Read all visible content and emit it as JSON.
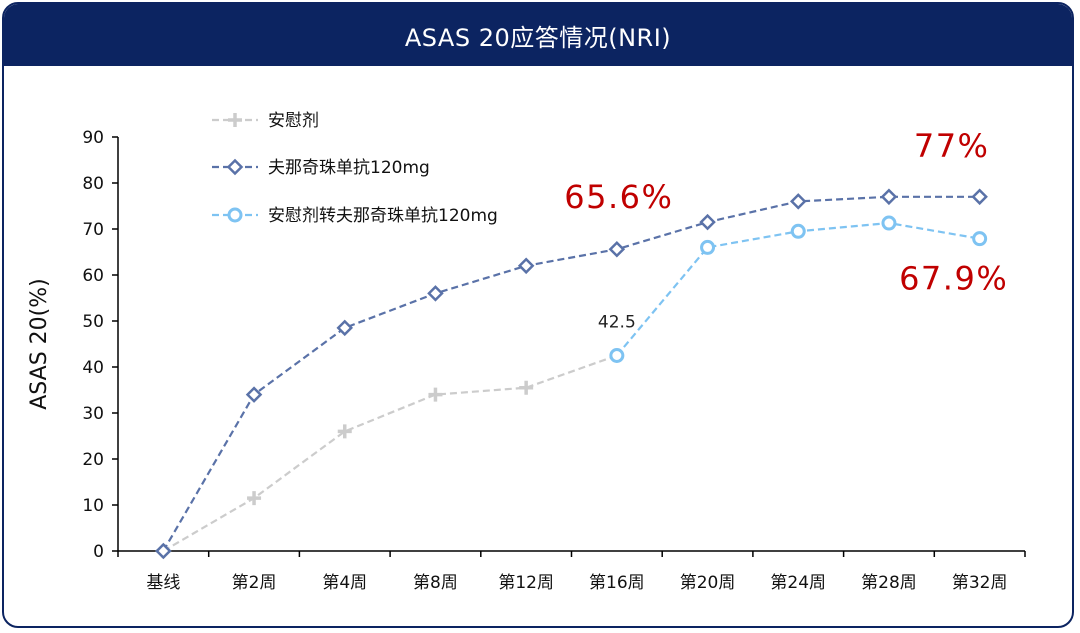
{
  "header": {
    "title": "ASAS 20应答情况(NRI)"
  },
  "colors": {
    "header_bg": "#0c2461",
    "placebo": "#cccccc",
    "drug": "#5a72a8",
    "crossover": "#7ec3f2",
    "highlight": "#c00000"
  },
  "chart_data": {
    "type": "line",
    "title": "ASAS 20应答情况(NRI)",
    "xlabel": "",
    "ylabel": "ASAS 20(%)",
    "ylim": [
      0,
      90
    ],
    "yticks": [
      "0",
      "10",
      "20",
      "30",
      "40",
      "50",
      "60",
      "70",
      "80",
      "90"
    ],
    "categories": [
      "基线",
      "第2周",
      "第4周",
      "第8周",
      "第12周",
      "第16周",
      "第20周",
      "第24周",
      "第28周",
      "第32周"
    ],
    "legend_position": "top-left",
    "series": [
      {
        "name": "安慰剂",
        "marker": "plus",
        "values": [
          0,
          11.5,
          26,
          34,
          35.5,
          42.5,
          null,
          null,
          null,
          null
        ]
      },
      {
        "name": "夫那奇珠单抗120mg",
        "marker": "diamond",
        "values": [
          0,
          34,
          48.5,
          56,
          62,
          65.6,
          71.5,
          76,
          77,
          77
        ]
      },
      {
        "name": "安慰剂转夫那奇珠单抗120mg",
        "marker": "circle",
        "values": [
          null,
          null,
          null,
          null,
          null,
          42.5,
          66,
          69.5,
          71.3,
          67.9
        ]
      }
    ],
    "annotations": [
      {
        "text": "42.5",
        "x": "第16周",
        "y": 42.5,
        "color": "#222222",
        "size": 17
      },
      {
        "text": "65.6%",
        "x": "第16周",
        "y": 65.6,
        "color": "#c00000",
        "size": 32
      },
      {
        "text": "77%",
        "x": "第32周",
        "y": 77,
        "color": "#c00000",
        "size": 32
      },
      {
        "text": "67.9%",
        "x": "第32周",
        "y": 67.9,
        "color": "#c00000",
        "size": 32
      }
    ]
  }
}
